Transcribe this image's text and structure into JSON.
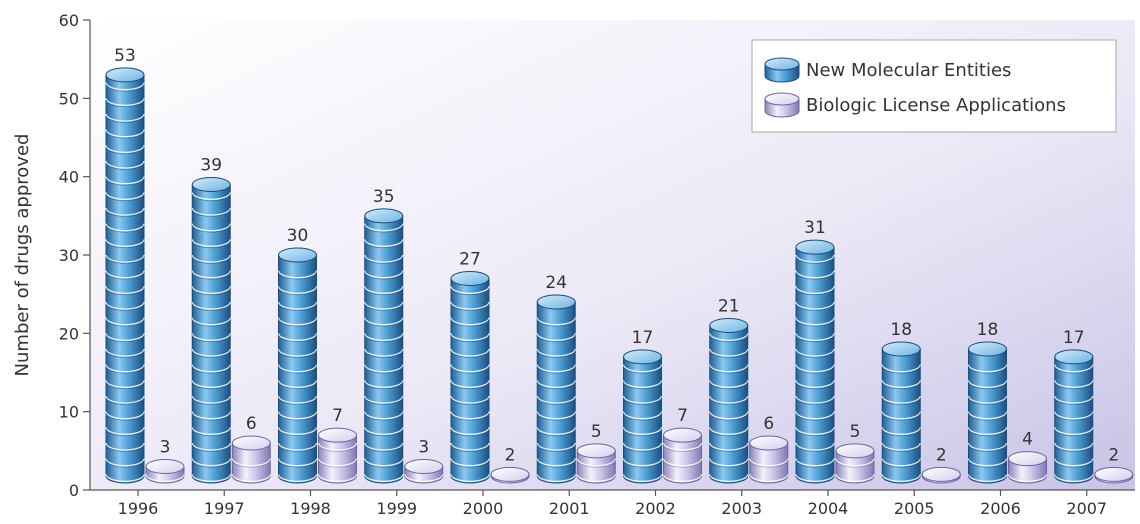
{
  "chart_data": {
    "type": "bar",
    "ylabel": "Number of drugs approved",
    "xlabel": "",
    "ylim": [
      0,
      60
    ],
    "yticks": [
      0,
      10,
      20,
      30,
      40,
      50,
      60
    ],
    "categories": [
      "1996",
      "1997",
      "1998",
      "1999",
      "2000",
      "2001",
      "2002",
      "2003",
      "2004",
      "2005",
      "2006",
      "2007"
    ],
    "series": [
      {
        "name": "New Molecular Entities",
        "values": [
          53,
          39,
          30,
          35,
          27,
          24,
          17,
          21,
          31,
          18,
          18,
          17
        ],
        "color": "#4e9fd4"
      },
      {
        "name": "Biologic License Applications",
        "values": [
          3,
          6,
          7,
          3,
          2,
          5,
          7,
          6,
          5,
          2,
          4,
          2
        ],
        "color": "#b9b3dd"
      }
    ],
    "grid": false,
    "legend_position": "top-right"
  }
}
